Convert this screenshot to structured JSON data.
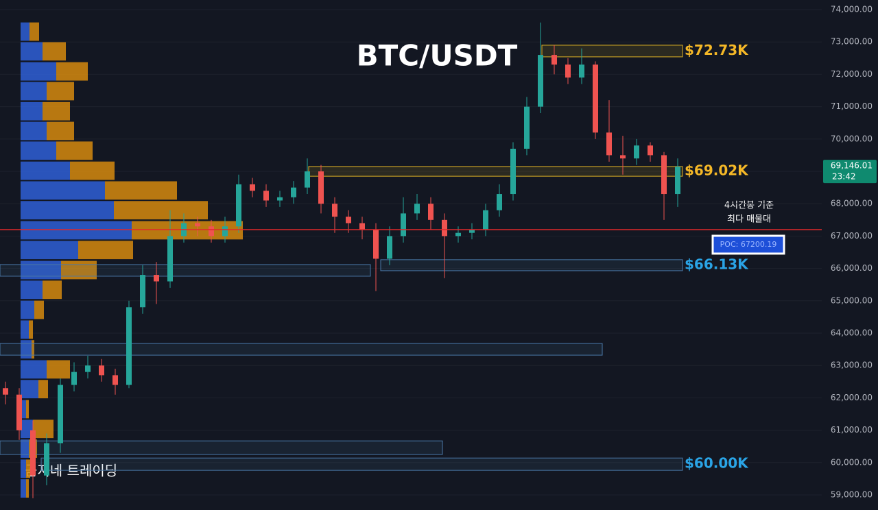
{
  "chart_data": {
    "type": "candlestick",
    "title": "BTC/USDT",
    "watermark": "곰지네 트레이딩",
    "ylim": [
      58534,
      74297
    ],
    "yticks": [
      {
        "value": 59000,
        "label": "59,000.00"
      },
      {
        "value": 60000,
        "label": "60,000.00"
      },
      {
        "value": 61000,
        "label": "61,000.00"
      },
      {
        "value": 62000,
        "label": "62,000.00"
      },
      {
        "value": 63000,
        "label": "63,000.00"
      },
      {
        "value": 64000,
        "label": "64,000.00"
      },
      {
        "value": 65000,
        "label": "65,000.00"
      },
      {
        "value": 66000,
        "label": "66,000.00"
      },
      {
        "value": 67000,
        "label": "67,000.00"
      },
      {
        "value": 68000,
        "label": "68,000.00"
      },
      {
        "value": 69000,
        "label": "69,000.00"
      },
      {
        "value": 70000,
        "label": "70,000.00"
      },
      {
        "value": 71000,
        "label": "71,000.00"
      },
      {
        "value": 72000,
        "label": "72,000.00"
      },
      {
        "value": 73000,
        "label": "73,000.00"
      },
      {
        "value": 74000,
        "label": "74,000.00"
      }
    ],
    "grid": true,
    "up_color": "#26a69a",
    "down_color": "#ef5350",
    "open": [
      62300,
      62100,
      61000,
      59600,
      60600,
      62400,
      62800,
      63000,
      62700,
      62400,
      64800,
      65800,
      65600,
      67000,
      67400,
      67300,
      67000,
      67300,
      68600,
      68400,
      68100,
      68200,
      68500,
      69000,
      68000,
      67600,
      67400,
      67200,
      66300,
      67000,
      67700,
      68000,
      67500,
      67000,
      67100,
      67200,
      67800,
      68300,
      69700,
      71000,
      72600,
      72300,
      71900,
      72300,
      70200,
      69500,
      69400,
      69800,
      69500,
      68300
    ],
    "high": [
      62500,
      62300,
      61300,
      60900,
      62600,
      63100,
      63300,
      63200,
      62900,
      65000,
      66100,
      66200,
      67800,
      67700,
      67600,
      67500,
      67600,
      68900,
      68800,
      68600,
      68400,
      68700,
      69400,
      69200,
      68200,
      67800,
      67600,
      67400,
      67300,
      68200,
      68300,
      68200,
      67700,
      67300,
      67400,
      68000,
      68600,
      69900,
      71300,
      73600,
      72900,
      72500,
      72800,
      72400,
      71200,
      70100,
      70000,
      69900,
      69600,
      69400
    ],
    "low": [
      61800,
      60700,
      58900,
      59300,
      60300,
      62200,
      62600,
      62500,
      62100,
      62300,
      64600,
      64900,
      65400,
      66800,
      67000,
      66800,
      66800,
      67100,
      68200,
      67900,
      67900,
      68000,
      68300,
      67700,
      67100,
      67100,
      66900,
      65300,
      66100,
      66800,
      67500,
      67200,
      65700,
      66800,
      66900,
      67000,
      67600,
      68100,
      69500,
      70800,
      72000,
      71700,
      71700,
      70000,
      69300,
      68900,
      69200,
      69300,
      67500,
      67900
    ],
    "close": [
      62100,
      61000,
      59600,
      60600,
      62400,
      62800,
      63000,
      62700,
      62400,
      64800,
      65800,
      65600,
      67000,
      67400,
      67300,
      67000,
      67300,
      68600,
      68400,
      68100,
      68200,
      68500,
      69000,
      68000,
      67600,
      67400,
      67200,
      66300,
      67000,
      67700,
      68000,
      67500,
      67000,
      67100,
      67200,
      67800,
      68300,
      69700,
      71000,
      72600,
      72300,
      71900,
      72300,
      70200,
      69500,
      69400,
      69800,
      69500,
      68300,
      69146
    ],
    "volume_profile": {
      "prices": [
        73320,
        72710,
        72090,
        71480,
        70860,
        70250,
        69640,
        69020,
        68410,
        67800,
        67180,
        66570,
        65950,
        65340,
        64720,
        64110,
        63500,
        62880,
        62270,
        61650,
        61040,
        60430,
        59810,
        59200
      ],
      "buy": [
        13,
        32,
        52,
        38,
        32,
        38,
        52,
        72,
        123,
        136,
        162,
        84,
        59,
        32,
        20,
        12,
        16,
        38,
        26,
        8,
        18,
        12,
        8,
        8
      ],
      "sell": [
        14,
        34,
        46,
        40,
        40,
        40,
        53,
        65,
        105,
        137,
        162,
        80,
        52,
        28,
        14,
        6,
        4,
        34,
        14,
        4,
        30,
        12,
        6,
        4
      ],
      "buy_color": "#2f5fd6",
      "sell_color": "#d68a0e"
    },
    "zones": [
      {
        "low": 72540,
        "high": 72900,
        "color": "#e0b325",
        "label": "$72.73K"
      },
      {
        "low": 68850,
        "high": 69150,
        "color": "#e0b325",
        "label": "$69.02K"
      },
      {
        "low": 65930,
        "high": 66270,
        "color": "#4a78a8",
        "label": "$66.13K"
      },
      {
        "low": 65760,
        "high": 66120,
        "color": "#4a78a8"
      },
      {
        "low": 63320,
        "high": 63680,
        "color": "#4a78a8"
      },
      {
        "low": 60250,
        "high": 60670,
        "color": "#4a78a8"
      },
      {
        "low": 59760,
        "high": 60140,
        "color": "#4a78a8",
        "label": "$60.00K"
      }
    ],
    "zone_label_colors": {
      "#e0b325": "#f5b827",
      "#4a78a8": "#2aa4e6"
    },
    "poc": {
      "value": 67200.19,
      "label": "POC: 67200.19",
      "color": "#e0282b"
    },
    "annotation": [
      "4시간봉 기준",
      "최다 매물대"
    ],
    "last_price": {
      "value": 69146.01,
      "label": "69,146.01",
      "countdown": "23:42",
      "color": "#0f8a6f"
    }
  }
}
